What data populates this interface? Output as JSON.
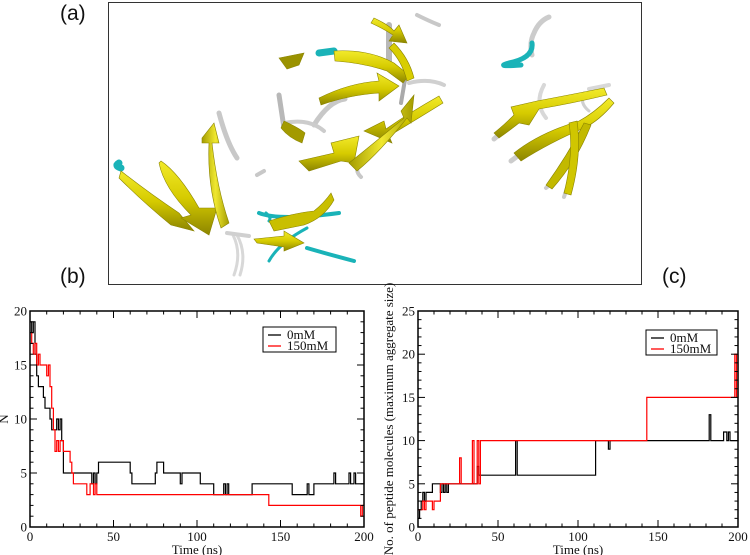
{
  "figure": {
    "panel_labels": {
      "a": "(a)",
      "b": "(b)",
      "c": "(c)"
    },
    "panel_a": {
      "description": "Molecular rendering of peptide aggregates (cartoon: yellow beta-strand arrows, white/grey coils, cyan turns)",
      "colors": {
        "strand": "#d4c800",
        "strand_dark": "#8a8400",
        "coil": "#c8c8c8",
        "turn": "#1ab3b8",
        "frame": "#333333"
      }
    }
  },
  "chart_data": [
    {
      "id": "b",
      "type": "line",
      "step": true,
      "title": "",
      "xlabel": "Time (ns)",
      "ylabel": "N",
      "xlim": [
        0,
        200
      ],
      "ylim": [
        0,
        20
      ],
      "xticks": [
        0,
        50,
        100,
        150,
        200
      ],
      "yticks": [
        0,
        5,
        10,
        15,
        20
      ],
      "grid": false,
      "legend": {
        "position": "upper right",
        "entries": [
          "0mM",
          "150mM"
        ]
      },
      "series": [
        {
          "name": "0mM",
          "color": "#000000",
          "x": [
            0,
            1,
            2,
            3,
            4,
            5,
            7,
            8,
            9,
            10,
            12,
            13,
            14,
            16,
            17,
            18,
            19,
            20,
            37,
            38,
            39,
            40,
            41,
            60,
            61,
            75,
            76,
            80,
            81,
            90,
            91,
            102,
            103,
            110,
            111,
            116,
            117,
            118,
            119,
            133,
            134,
            157,
            158,
            166,
            167,
            170,
            171,
            182,
            183,
            191,
            192,
            194,
            195,
            200
          ],
          "y": [
            19,
            18,
            19,
            16,
            14,
            13,
            13,
            12,
            11,
            11,
            10,
            9,
            9,
            10,
            9,
            10,
            8,
            5,
            4,
            5,
            4,
            5,
            6,
            5,
            4,
            5,
            6,
            5,
            5,
            4,
            5,
            4,
            4,
            3,
            3,
            4,
            3,
            4,
            3,
            4,
            4,
            3,
            3,
            4,
            3,
            4,
            4,
            5,
            4,
            5,
            4,
            5,
            4,
            5
          ]
        },
        {
          "name": "150mM",
          "color": "#ff0000",
          "x": [
            0,
            1,
            2,
            3,
            4,
            5,
            6,
            9,
            10,
            11,
            12,
            13,
            14,
            15,
            16,
            17,
            18,
            20,
            22,
            24,
            25,
            26,
            29,
            33,
            34,
            36,
            37,
            38,
            39,
            40,
            110,
            142,
            143,
            197,
            198,
            199,
            200
          ],
          "y": [
            18,
            17,
            16,
            17,
            15,
            16,
            15,
            15,
            14,
            15,
            13,
            11,
            9,
            7,
            8,
            7,
            8,
            7,
            7,
            6,
            5,
            4,
            4,
            4,
            3,
            4,
            4,
            3,
            4,
            3,
            3,
            3,
            2,
            2,
            1,
            2,
            2
          ]
        }
      ]
    },
    {
      "id": "c",
      "type": "line",
      "step": true,
      "title": "",
      "xlabel": "Time (ns)",
      "ylabel": "No. of peptide molecules (maximum aggregate size)",
      "xlim": [
        0,
        200
      ],
      "ylim": [
        0,
        25
      ],
      "xticks": [
        0,
        50,
        100,
        150,
        200
      ],
      "yticks": [
        0,
        5,
        10,
        15,
        20,
        25
      ],
      "grid": false,
      "legend": {
        "position": "upper right",
        "entries": [
          "0mM",
          "150mM"
        ]
      },
      "series": [
        {
          "name": "0mM",
          "color": "#000000",
          "x": [
            0,
            1,
            2,
            3,
            4,
            5,
            8,
            9,
            10,
            14,
            15,
            16,
            17,
            18,
            19,
            37,
            38,
            39,
            60,
            61,
            62,
            110,
            111,
            119,
            120,
            182,
            183,
            190,
            191,
            193,
            194,
            195,
            200
          ],
          "y": [
            1,
            2,
            3,
            4,
            3,
            4,
            4,
            5,
            5,
            4,
            5,
            4,
            5,
            4,
            5,
            7,
            6,
            6,
            6,
            10,
            6,
            6,
            10,
            9,
            10,
            13,
            10,
            10,
            11,
            10,
            11,
            10,
            11
          ]
        },
        {
          "name": "150mM",
          "color": "#ff0000",
          "x": [
            0,
            2,
            3,
            4,
            5,
            6,
            9,
            10,
            13,
            14,
            25,
            26,
            27,
            33,
            34,
            35,
            37,
            38,
            39,
            40,
            142,
            143,
            197,
            198,
            199,
            200
          ],
          "y": [
            2,
            2,
            3,
            2,
            3,
            3,
            2,
            3,
            3,
            5,
            5,
            8,
            5,
            5,
            10,
            5,
            10,
            5,
            10,
            10,
            10,
            15,
            15,
            20,
            15,
            20
          ]
        }
      ]
    }
  ]
}
